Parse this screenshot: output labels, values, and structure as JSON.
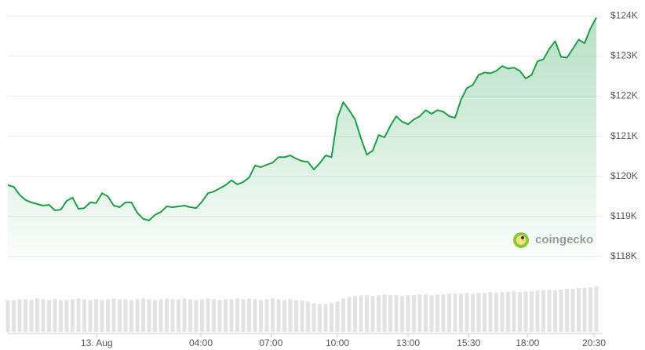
{
  "chart_data": {
    "type": "area",
    "values": [
      119780,
      119740,
      119540,
      119410,
      119350,
      119310,
      119270,
      119290,
      119150,
      119170,
      119390,
      119470,
      119190,
      119210,
      119350,
      119330,
      119580,
      119500,
      119270,
      119230,
      119350,
      119350,
      119090,
      118940,
      118900,
      119040,
      119110,
      119250,
      119230,
      119250,
      119270,
      119230,
      119210,
      119370,
      119580,
      119620,
      119700,
      119780,
      119900,
      119800,
      119860,
      119970,
      120270,
      120230,
      120290,
      120340,
      120480,
      120480,
      120520,
      120440,
      120380,
      120360,
      120170,
      120330,
      120520,
      120480,
      121460,
      121850,
      121650,
      121420,
      120950,
      120540,
      120640,
      121030,
      120970,
      121260,
      121500,
      121360,
      121300,
      121420,
      121500,
      121650,
      121560,
      121650,
      121610,
      121500,
      121460,
      121910,
      122200,
      122280,
      122530,
      122590,
      122570,
      122630,
      122750,
      122690,
      122710,
      122630,
      122440,
      122530,
      122870,
      122920,
      123180,
      123370,
      122980,
      122960,
      123180,
      123410,
      123320,
      123690,
      123960
    ],
    "color": "#1e9e48",
    "xlim": [
      0,
      100
    ],
    "xticks": [
      {
        "value": 15.1,
        "label": "13. Aug"
      },
      {
        "value": 32.8,
        "label": "04:00"
      },
      {
        "value": 44.7,
        "label": "07:00"
      },
      {
        "value": 56,
        "label": "10:00"
      },
      {
        "value": 68,
        "label": "13:00"
      },
      {
        "value": 78.3,
        "label": "15:30"
      },
      {
        "value": 88.3,
        "label": "18:00"
      },
      {
        "value": 99.6,
        "label": "20:30"
      }
    ],
    "ylim": [
      117900,
      124300
    ],
    "yticks": [
      {
        "value": 118000,
        "label": "$118K"
      },
      {
        "value": 119000,
        "label": "$119K"
      },
      {
        "value": 120000,
        "label": "$120K"
      },
      {
        "value": 121000,
        "label": "$121K"
      },
      {
        "value": 122000,
        "label": "$122K"
      },
      {
        "value": 123000,
        "label": "$123K"
      },
      {
        "value": 124000,
        "label": "$124K"
      }
    ],
    "grid": true,
    "volume": {
      "color": "#e3e3e3",
      "values": [
        40,
        40,
        41,
        41,
        40,
        42,
        41,
        40,
        41,
        40,
        40,
        41,
        42,
        41,
        40,
        41,
        40,
        41,
        42,
        41,
        41,
        40,
        41,
        42,
        41,
        40,
        41,
        42,
        41,
        41,
        42,
        41,
        40,
        41,
        42,
        41,
        40,
        41,
        41,
        42,
        41,
        42,
        41,
        40,
        41,
        42,
        41,
        40,
        41,
        40,
        39,
        38,
        36,
        35,
        35,
        36,
        38,
        42,
        44,
        45,
        46,
        46,
        45,
        46,
        47,
        46,
        46,
        45,
        46,
        46,
        47,
        47,
        46,
        47,
        47,
        48,
        48,
        48,
        49,
        48,
        49,
        49,
        50,
        49,
        50,
        50,
        51,
        50,
        51,
        51,
        52,
        52,
        53,
        52,
        53,
        54,
        54,
        55,
        55,
        56,
        57
      ]
    },
    "watermark": "coingecko"
  }
}
